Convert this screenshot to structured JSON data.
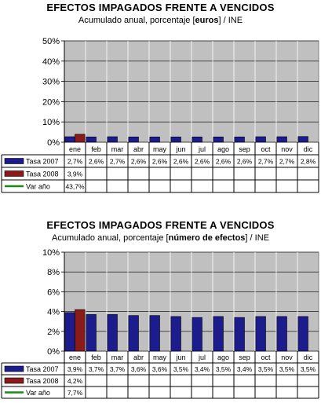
{
  "chart_data": [
    {
      "type": "bar",
      "title": "EFECTOS IMPAGADOS FRENTE A VENCIDOS",
      "subtitle_prefix": "Acumulado anual, porcentaje [",
      "subtitle_bold": "euros",
      "subtitle_suffix": "] / INE",
      "categories": [
        "ene",
        "feb",
        "mar",
        "abr",
        "may",
        "jun",
        "jul",
        "ago",
        "sep",
        "oct",
        "nov",
        "dic"
      ],
      "ylim": [
        0,
        50
      ],
      "yticks": [
        0,
        10,
        20,
        30,
        40,
        50
      ],
      "ytick_labels": [
        "0%",
        "10%",
        "20%",
        "30%",
        "40%",
        "50%"
      ],
      "grid": true,
      "legend_placement": "table-left",
      "series": [
        {
          "name": "Tasa 2007",
          "color": "#1c1c8c",
          "values": [
            2.7,
            2.6,
            2.7,
            2.6,
            2.6,
            2.6,
            2.6,
            2.6,
            2.6,
            2.7,
            2.7,
            2.8
          ],
          "labels": [
            "2,7%",
            "2,6%",
            "2,7%",
            "2,6%",
            "2,6%",
            "2,6%",
            "2,6%",
            "2,6%",
            "2,6%",
            "2,7%",
            "2,7%",
            "2,8%"
          ]
        },
        {
          "name": "Tasa 2008",
          "color": "#8b1a1a",
          "values": [
            3.9,
            null,
            null,
            null,
            null,
            null,
            null,
            null,
            null,
            null,
            null,
            null
          ],
          "labels": [
            "3,9%",
            "",
            "",
            "",
            "",
            "",
            "",
            "",
            "",
            "",
            "",
            ""
          ]
        },
        {
          "name": "Var año",
          "color": "#1a8a1a",
          "line": true,
          "values": [
            43.7,
            null,
            null,
            null,
            null,
            null,
            null,
            null,
            null,
            null,
            null,
            null
          ],
          "labels": [
            "43,7%",
            "",
            "",
            "",
            "",
            "",
            "",
            "",
            "",
            "",
            "",
            ""
          ]
        }
      ]
    },
    {
      "type": "bar",
      "title": "EFECTOS IMPAGADOS FRENTE A VENCIDOS",
      "subtitle_prefix": "Acumulado anual, porcentaje [",
      "subtitle_bold": "número de efectos",
      "subtitle_suffix": "] / INE",
      "categories": [
        "ene",
        "feb",
        "mar",
        "abr",
        "may",
        "jun",
        "jul",
        "ago",
        "sep",
        "oct",
        "nov",
        "dic"
      ],
      "ylim": [
        0,
        10
      ],
      "yticks": [
        0,
        2,
        4,
        6,
        8,
        10
      ],
      "ytick_labels": [
        "0%",
        "2%",
        "4%",
        "6%",
        "8%",
        "10%"
      ],
      "grid": true,
      "legend_placement": "table-left",
      "series": [
        {
          "name": "Tasa 2007",
          "color": "#1c1c8c",
          "values": [
            3.9,
            3.7,
            3.7,
            3.6,
            3.6,
            3.5,
            3.4,
            3.5,
            3.4,
            3.5,
            3.5,
            3.5
          ],
          "labels": [
            "3,9%",
            "3,7%",
            "3,7%",
            "3,6%",
            "3,6%",
            "3,5%",
            "3,4%",
            "3,5%",
            "3,4%",
            "3,5%",
            "3,5%",
            "3,5%"
          ]
        },
        {
          "name": "Tasa 2008",
          "color": "#8b1a1a",
          "values": [
            4.2,
            null,
            null,
            null,
            null,
            null,
            null,
            null,
            null,
            null,
            null,
            null
          ],
          "labels": [
            "4,2%",
            "",
            "",
            "",
            "",
            "",
            "",
            "",
            "",
            "",
            "",
            ""
          ]
        },
        {
          "name": "Var año",
          "color": "#1a8a1a",
          "line": true,
          "values": [
            7.7,
            null,
            null,
            null,
            null,
            null,
            null,
            null,
            null,
            null,
            null,
            null
          ],
          "labels": [
            "7,7%",
            "",
            "",
            "",
            "",
            "",
            "",
            "",
            "",
            "",
            "",
            ""
          ]
        }
      ]
    }
  ]
}
